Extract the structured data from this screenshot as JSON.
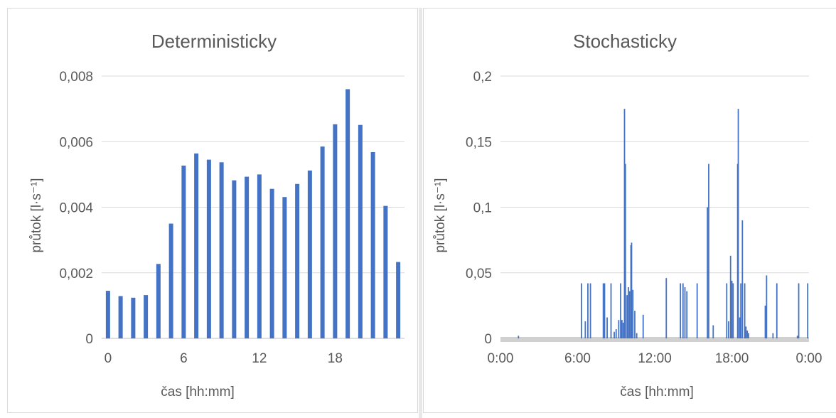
{
  "chart_data": [
    {
      "type": "bar",
      "title": "Deterministicky",
      "xlabel": "čas [hh:mm]",
      "ylabel": "průtok [l·s⁻¹]",
      "ylim": [
        0,
        0.008
      ],
      "yticks": [
        "0",
        "0,002",
        "0,004",
        "0,006",
        "0,008"
      ],
      "xticks": [
        "0",
        "6",
        "12",
        "18"
      ],
      "grid": true,
      "color": "#4472c4",
      "categories": [
        0,
        1,
        2,
        3,
        4,
        5,
        6,
        7,
        8,
        9,
        10,
        11,
        12,
        13,
        14,
        15,
        16,
        17,
        18,
        19,
        20,
        21,
        22,
        23
      ],
      "values": [
        0.00145,
        0.00129,
        0.00124,
        0.00132,
        0.00227,
        0.0035,
        0.00527,
        0.00564,
        0.00545,
        0.00537,
        0.00482,
        0.00493,
        0.005,
        0.00456,
        0.00431,
        0.00471,
        0.00512,
        0.00585,
        0.00653,
        0.0076,
        0.00651,
        0.00568,
        0.00404,
        0.00233
      ]
    },
    {
      "type": "bar",
      "title": "Stochasticky",
      "xlabel": "čas [hh:mm]",
      "ylabel": "průtok [l·s⁻¹]",
      "ylim": [
        0,
        0.2
      ],
      "yticks": [
        "0",
        "0,05",
        "0,1",
        "0,15",
        "0,2"
      ],
      "xticks": [
        "0:00",
        "6:00",
        "12:00",
        "18:00",
        "0:00"
      ],
      "xlim_hours": [
        0,
        24
      ],
      "grid": true,
      "color": "#4472c4",
      "baseline_color": "#d0d0d0",
      "points": [
        [
          1.4,
          0.002
        ],
        [
          6.3,
          0.042
        ],
        [
          6.6,
          0.013
        ],
        [
          6.8,
          0.042
        ],
        [
          7.0,
          0.042
        ],
        [
          8.0,
          0.042
        ],
        [
          8.1,
          0.042
        ],
        [
          8.3,
          0.016
        ],
        [
          8.6,
          0.042
        ],
        [
          8.85,
          0.005
        ],
        [
          9.0,
          0.007
        ],
        [
          9.2,
          0.014
        ],
        [
          9.35,
          0.042
        ],
        [
          9.45,
          0.014
        ],
        [
          9.55,
          0.012
        ],
        [
          9.65,
          0.175
        ],
        [
          9.72,
          0.133
        ],
        [
          9.85,
          0.033
        ],
        [
          9.95,
          0.039
        ],
        [
          10.05,
          0.036
        ],
        [
          10.15,
          0.071
        ],
        [
          10.2,
          0.073
        ],
        [
          10.3,
          0.037
        ],
        [
          10.45,
          0.021
        ],
        [
          10.6,
          0.004
        ],
        [
          11.1,
          0.018
        ],
        [
          12.9,
          0.046
        ],
        [
          14.0,
          0.042
        ],
        [
          14.2,
          0.042
        ],
        [
          14.35,
          0.039
        ],
        [
          14.5,
          0.036
        ],
        [
          15.3,
          0.042
        ],
        [
          16.1,
          0.1
        ],
        [
          16.2,
          0.133
        ],
        [
          16.55,
          0.01
        ],
        [
          17.6,
          0.042
        ],
        [
          17.75,
          0.013
        ],
        [
          17.9,
          0.063
        ],
        [
          18.0,
          0.044
        ],
        [
          18.1,
          0.042
        ],
        [
          18.45,
          0.133
        ],
        [
          18.5,
          0.175
        ],
        [
          18.62,
          0.016
        ],
        [
          18.7,
          0.042
        ],
        [
          18.82,
          0.09
        ],
        [
          19.0,
          0.042
        ],
        [
          19.1,
          0.009
        ],
        [
          19.2,
          0.006
        ],
        [
          19.3,
          0.004
        ],
        [
          20.6,
          0.025
        ],
        [
          20.7,
          0.048
        ],
        [
          21.2,
          0.004
        ],
        [
          21.5,
          0.042
        ],
        [
          23.1,
          0.002
        ],
        [
          23.2,
          0.042
        ],
        [
          23.9,
          0.042
        ]
      ]
    }
  ]
}
